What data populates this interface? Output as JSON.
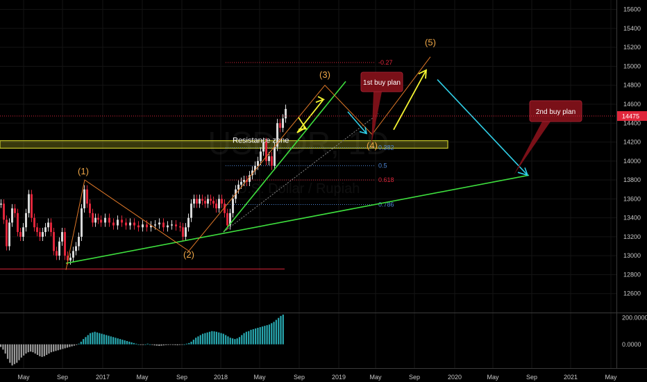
{
  "chart_data": {
    "type": "line",
    "title": "",
    "watermark": {
      "symbol": "USDIDR, 1D",
      "description": "U.S. Dollar / Rupiah"
    },
    "last_price": {
      "value": 14475,
      "label": "14475",
      "color": "#e0263b"
    },
    "y_axis": {
      "min": 12400,
      "max": 15700,
      "ticks": [
        12600,
        12800,
        13000,
        13200,
        13400,
        13600,
        13800,
        14000,
        14200,
        14400,
        14600,
        14800,
        15000,
        15200,
        15400,
        15600
      ]
    },
    "x_axis": {
      "ticks": [
        "May",
        "Sep",
        "2017",
        "May",
        "Sep",
        "2018",
        "May",
        "Sep",
        "2019",
        "May",
        "Sep",
        "2020",
        "May",
        "Sep",
        "2021",
        "May"
      ]
    },
    "price_series": {
      "name": "USD/IDR daily",
      "color": "#d9d9d9",
      "down_color": "#e0263b",
      "points": [
        [
          0,
          13550
        ],
        [
          4,
          13380
        ],
        [
          8,
          13100
        ],
        [
          12,
          13350
        ],
        [
          16,
          13500
        ],
        [
          20,
          13450
        ],
        [
          24,
          13250
        ],
        [
          28,
          13200
        ],
        [
          32,
          13300
        ],
        [
          36,
          13450
        ],
        [
          40,
          13650
        ],
        [
          44,
          13400
        ],
        [
          48,
          13300
        ],
        [
          52,
          13250
        ],
        [
          56,
          13200
        ],
        [
          60,
          13250
        ],
        [
          64,
          13300
        ],
        [
          68,
          13350
        ],
        [
          72,
          13250
        ],
        [
          76,
          13050
        ],
        [
          80,
          13000
        ],
        [
          84,
          13150
        ],
        [
          88,
          13250
        ],
        [
          92,
          13000
        ],
        [
          96,
          12950
        ],
        [
          100,
          12980
        ],
        [
          104,
          13050
        ],
        [
          108,
          13100
        ],
        [
          112,
          13200
        ],
        [
          116,
          13500
        ],
        [
          120,
          13700
        ],
        [
          124,
          13550
        ],
        [
          128,
          13450
        ],
        [
          132,
          13350
        ],
        [
          136,
          13400
        ],
        [
          140,
          13380
        ],
        [
          144,
          13350
        ],
        [
          150,
          13400
        ],
        [
          156,
          13350
        ],
        [
          162,
          13320
        ],
        [
          168,
          13380
        ],
        [
          174,
          13350
        ],
        [
          180,
          13320
        ],
        [
          186,
          13350
        ],
        [
          192,
          13320
        ],
        [
          198,
          13300
        ],
        [
          204,
          13330
        ],
        [
          210,
          13300
        ],
        [
          216,
          13320
        ],
        [
          222,
          13330
        ],
        [
          228,
          13350
        ],
        [
          234,
          13300
        ],
        [
          240,
          13320
        ],
        [
          246,
          13330
        ],
        [
          252,
          13310
        ],
        [
          258,
          13300
        ],
        [
          262,
          13200
        ],
        [
          266,
          13300
        ],
        [
          270,
          13400
        ],
        [
          274,
          13550
        ],
        [
          278,
          13600
        ],
        [
          282,
          13550
        ],
        [
          286,
          13600
        ],
        [
          290,
          13580
        ],
        [
          294,
          13550
        ],
        [
          298,
          13600
        ],
        [
          302,
          13580
        ],
        [
          306,
          13550
        ],
        [
          310,
          13500
        ],
        [
          314,
          13600
        ],
        [
          318,
          13550
        ],
        [
          322,
          13450
        ],
        [
          326,
          13320
        ],
        [
          330,
          13450
        ],
        [
          334,
          13600
        ],
        [
          338,
          13700
        ],
        [
          342,
          13750
        ],
        [
          346,
          13780
        ],
        [
          350,
          13800
        ],
        [
          354,
          13780
        ],
        [
          358,
          13850
        ],
        [
          362,
          13900
        ],
        [
          366,
          13950
        ],
        [
          370,
          14000
        ],
        [
          374,
          14100
        ],
        [
          378,
          14200
        ],
        [
          382,
          14000
        ],
        [
          386,
          14050
        ],
        [
          390,
          13950
        ],
        [
          394,
          14150
        ],
        [
          398,
          14400
        ],
        [
          402,
          14350
        ],
        [
          406,
          14450
        ],
        [
          410,
          14550
        ]
      ]
    },
    "annotations": {
      "waves": [
        {
          "label": "(1)",
          "x": 120,
          "y": 13860
        },
        {
          "label": "(2)",
          "x": 272,
          "y": 12980
        },
        {
          "label": "(3)",
          "x": 468,
          "y": 14880
        },
        {
          "label": "(4)",
          "x": 536,
          "y": 14130
        },
        {
          "label": "(5)",
          "x": 620,
          "y": 15220
        }
      ],
      "fibonacci": [
        {
          "label": "-0.27",
          "value": 15040,
          "color": "#e0263b"
        },
        {
          "label": "0.382",
          "value": 14140,
          "color": "#4f88d8"
        },
        {
          "label": "0.5",
          "value": 13950,
          "color": "#4f88d8"
        },
        {
          "label": "0.618",
          "value": 13800,
          "color": "#e0263b"
        },
        {
          "label": "0.786",
          "value": 13540,
          "color": "#4f88d8"
        }
      ],
      "resistance_zone": {
        "label": "Resistance zone",
        "low": 14150,
        "high": 14200,
        "color": "#c8c82c"
      },
      "support_line": {
        "value": 12860,
        "color": "#e0263b"
      },
      "callouts": [
        {
          "label": "1st buy plan",
          "color": "#7a1018"
        },
        {
          "label": "2nd buy plan",
          "color": "#7a1018"
        }
      ],
      "trendline_color": "#3ee03e",
      "projection_colors": {
        "yellow": "#f5f532",
        "cyan": "#30d0e8"
      }
    },
    "oscillator": {
      "y_ticks": [
        "200.0000",
        "0.0000"
      ],
      "min": -180,
      "max": 230,
      "up_color": "#28a8b0",
      "down_color": "#9a9a9a",
      "values": [
        -20,
        -40,
        -70,
        -110,
        -140,
        -160,
        -150,
        -140,
        -120,
        -100,
        -85,
        -70,
        -60,
        -55,
        -60,
        -70,
        -80,
        -90,
        -95,
        -90,
        -80,
        -70,
        -60,
        -55,
        -50,
        -45,
        -40,
        -35,
        -30,
        -25,
        -20,
        -15,
        -10,
        -5,
        5,
        20,
        40,
        55,
        70,
        85,
        90,
        95,
        90,
        85,
        80,
        75,
        70,
        65,
        60,
        55,
        50,
        45,
        40,
        35,
        30,
        25,
        20,
        15,
        10,
        5,
        0,
        -5,
        -5,
        0,
        5,
        0,
        -5,
        -8,
        -10,
        -12,
        -10,
        -8,
        -6,
        -5,
        -4,
        -5,
        -6,
        -7,
        -5,
        -3,
        0,
        5,
        10,
        20,
        35,
        50,
        60,
        70,
        80,
        85,
        90,
        95,
        100,
        98,
        95,
        90,
        85,
        80,
        70,
        60,
        50,
        45,
        40,
        45,
        55,
        70,
        85,
        95,
        100,
        110,
        115,
        120,
        125,
        130,
        135,
        140,
        145,
        150,
        160,
        170,
        185,
        200,
        215,
        225
      ]
    }
  }
}
